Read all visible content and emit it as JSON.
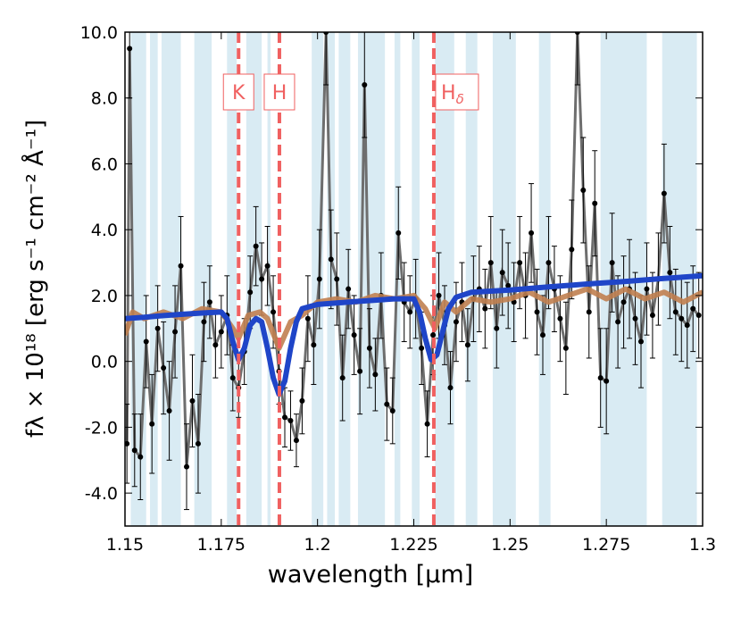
{
  "chart_data": {
    "type": "spectrum",
    "xlabel": "wavelength [μm]",
    "ylabel": "fλ × 10¹⁸ [erg s⁻¹ cm⁻² Å⁻¹]",
    "xlim": [
      1.15,
      1.3
    ],
    "ylim": [
      -5,
      10
    ],
    "xticks": [
      1.15,
      1.175,
      1.2,
      1.225,
      1.25,
      1.275,
      1.3
    ],
    "yticks": [
      {
        "value": -4,
        "label": "-4.0"
      },
      {
        "value": -2,
        "label": "-2.0"
      },
      {
        "value": 0,
        "label": "0.0"
      },
      {
        "value": 2,
        "label": "2.0"
      },
      {
        "value": 4,
        "label": "4.0"
      },
      {
        "value": 6,
        "label": "6.0"
      },
      {
        "value": 8,
        "label": "8.0"
      },
      {
        "value": 10,
        "label": "10.0"
      }
    ],
    "shaded_regions": {
      "color": "#c9e2ee",
      "ranges": [
        [
          1.1515,
          1.1555
        ],
        [
          1.1565,
          1.1585
        ],
        [
          1.1595,
          1.1645
        ],
        [
          1.168,
          1.1725
        ],
        [
          1.1765,
          1.179
        ],
        [
          1.1815,
          1.1855
        ],
        [
          1.187,
          1.1878
        ],
        [
          1.1985,
          1.2015
        ],
        [
          1.2025,
          1.2045
        ],
        [
          1.2055,
          1.2085
        ],
        [
          1.2105,
          1.2175
        ],
        [
          1.22,
          1.2215
        ],
        [
          1.2245,
          1.2265
        ],
        [
          1.2305,
          1.2355
        ],
        [
          1.2385,
          1.2415
        ],
        [
          1.2455,
          1.2515
        ],
        [
          1.2575,
          1.2605
        ],
        [
          1.2735,
          1.2855
        ],
        [
          1.2895,
          1.2985
        ]
      ]
    },
    "lines": {
      "color": "#f06060",
      "items": [
        {
          "x": 1.1795,
          "label": "K"
        },
        {
          "x": 1.1901,
          "label": "H"
        },
        {
          "x": 1.2302,
          "label": "H",
          "subscript": "δ"
        }
      ]
    },
    "series": [
      {
        "name": "data",
        "color": "#000000",
        "line_color": "#6e6e6e",
        "x": [
          1.1505,
          1.1512,
          1.1525,
          1.154,
          1.1555,
          1.157,
          1.1585,
          1.16,
          1.1615,
          1.163,
          1.1645,
          1.166,
          1.1675,
          1.169,
          1.1705,
          1.172,
          1.1735,
          1.175,
          1.1765,
          1.178,
          1.1795,
          1.181,
          1.1825,
          1.184,
          1.1855,
          1.187,
          1.1885,
          1.19,
          1.1915,
          1.193,
          1.1945,
          1.196,
          1.1975,
          1.199,
          1.2005,
          1.2022,
          1.2035,
          1.205,
          1.2065,
          1.208,
          1.2095,
          1.211,
          1.2122,
          1.2135,
          1.215,
          1.2165,
          1.218,
          1.2195,
          1.221,
          1.2225,
          1.224,
          1.2255,
          1.227,
          1.2285,
          1.23,
          1.2315,
          1.233,
          1.2345,
          1.236,
          1.2375,
          1.239,
          1.2405,
          1.242,
          1.2435,
          1.245,
          1.2465,
          1.248,
          1.2495,
          1.251,
          1.2525,
          1.254,
          1.2555,
          1.257,
          1.2585,
          1.26,
          1.2615,
          1.263,
          1.2645,
          1.266,
          1.2675,
          1.269,
          1.2705,
          1.272,
          1.2735,
          1.275,
          1.2765,
          1.278,
          1.2795,
          1.281,
          1.2825,
          1.284,
          1.2855,
          1.287,
          1.2885,
          1.29,
          1.2915,
          1.293,
          1.2945,
          1.296,
          1.2975,
          1.299
        ],
        "values": [
          -2.5,
          9.5,
          -2.7,
          -2.9,
          0.6,
          -1.9,
          1.0,
          -0.2,
          -1.5,
          0.9,
          2.9,
          -3.2,
          -1.2,
          -2.5,
          1.2,
          1.8,
          0.5,
          0.9,
          1.4,
          -0.5,
          -0.8,
          0.3,
          2.1,
          3.5,
          2.5,
          2.9,
          1.5,
          -0.3,
          -1.7,
          -1.8,
          -2.4,
          -1.2,
          1.3,
          0.5,
          2.5,
          10.0,
          3.1,
          2.5,
          -0.5,
          2.2,
          0.8,
          -0.3,
          8.4,
          0.4,
          -0.4,
          2.0,
          -1.3,
          -1.5,
          3.9,
          1.8,
          1.5,
          1.9,
          0.4,
          -1.9,
          0.8,
          2.0,
          1.1,
          -0.8,
          1.2,
          1.8,
          0.5,
          1.9,
          2.2,
          1.6,
          3.0,
          1.0,
          2.7,
          2.3,
          1.8,
          3.0,
          2.0,
          3.9,
          1.5,
          0.8,
          3.0,
          2.2,
          1.3,
          0.4,
          3.4,
          10.0,
          5.2,
          1.5,
          4.8,
          -0.5,
          -0.6,
          3.0,
          1.2,
          1.8,
          2.2,
          1.3,
          0.6,
          2.2,
          1.4,
          2.5,
          5.1,
          2.7,
          1.5,
          1.3,
          1.1,
          1.6,
          1.4
        ],
        "errors": [
          1.2,
          1.5,
          1.1,
          1.3,
          1.4,
          1.5,
          1.3,
          1.4,
          1.5,
          1.4,
          1.5,
          1.3,
          1.4,
          1.5,
          1.2,
          1.1,
          1.0,
          1.1,
          1.2,
          1.0,
          0.9,
          1.0,
          1.1,
          1.2,
          1.1,
          1.2,
          1.1,
          1.0,
          0.9,
          0.9,
          0.8,
          1.0,
          1.3,
          1.2,
          1.5,
          1.6,
          1.5,
          1.4,
          1.3,
          1.2,
          1.2,
          1.3,
          1.6,
          1.2,
          1.1,
          1.3,
          1.1,
          1.0,
          1.4,
          1.2,
          1.1,
          1.2,
          1.1,
          1.0,
          1.2,
          1.3,
          1.2,
          1.1,
          1.2,
          1.2,
          1.1,
          1.3,
          1.3,
          1.2,
          1.4,
          1.2,
          1.3,
          1.3,
          1.2,
          1.4,
          1.3,
          1.5,
          1.3,
          1.2,
          1.4,
          1.3,
          1.3,
          1.4,
          1.5,
          1.6,
          1.6,
          1.4,
          1.6,
          1.5,
          1.6,
          1.5,
          1.4,
          1.4,
          1.5,
          1.4,
          1.4,
          1.4,
          1.3,
          1.4,
          1.5,
          1.4,
          1.3,
          1.3,
          1.3,
          1.3,
          1.3
        ]
      },
      {
        "name": "model",
        "color": "#1f45c8",
        "x": [
          1.15,
          1.155,
          1.16,
          1.165,
          1.17,
          1.175,
          1.1765,
          1.178,
          1.1795,
          1.181,
          1.1825,
          1.184,
          1.1855,
          1.187,
          1.1885,
          1.19,
          1.1915,
          1.193,
          1.1945,
          1.196,
          1.2,
          1.21,
          1.22,
          1.225,
          1.2265,
          1.228,
          1.2295,
          1.231,
          1.2325,
          1.234,
          1.236,
          1.24,
          1.25,
          1.26,
          1.27,
          1.28,
          1.29,
          1.3
        ],
        "values": [
          1.3,
          1.34,
          1.39,
          1.43,
          1.47,
          1.5,
          1.3,
          0.6,
          0.05,
          0.4,
          1.1,
          1.3,
          1.2,
          0.4,
          -0.5,
          -1.0,
          -0.6,
          0.4,
          1.2,
          1.6,
          1.73,
          1.82,
          1.9,
          1.9,
          1.5,
          0.7,
          0.05,
          0.2,
          0.9,
          1.6,
          1.95,
          2.1,
          2.17,
          2.26,
          2.35,
          2.43,
          2.52,
          2.6
        ]
      },
      {
        "name": "template",
        "color": "#c08050",
        "x": [
          1.15,
          1.152,
          1.155,
          1.16,
          1.165,
          1.17,
          1.175,
          1.178,
          1.1795,
          1.182,
          1.185,
          1.187,
          1.19,
          1.193,
          1.196,
          1.2,
          1.205,
          1.21,
          1.215,
          1.22,
          1.225,
          1.228,
          1.2305,
          1.233,
          1.236,
          1.24,
          1.245,
          1.25,
          1.255,
          1.26,
          1.265,
          1.27,
          1.275,
          1.28,
          1.285,
          1.29,
          1.295,
          1.3
        ],
        "values": [
          0.8,
          1.5,
          1.3,
          1.5,
          1.3,
          1.6,
          1.5,
          1.0,
          0.7,
          1.4,
          1.5,
          1.3,
          0.4,
          1.2,
          1.4,
          1.8,
          1.9,
          1.8,
          2.0,
          1.9,
          2.0,
          1.6,
          1.0,
          1.8,
          1.5,
          1.9,
          1.8,
          1.9,
          2.1,
          1.8,
          2.0,
          2.2,
          1.9,
          2.2,
          1.9,
          2.1,
          1.8,
          2.1
        ]
      }
    ]
  }
}
